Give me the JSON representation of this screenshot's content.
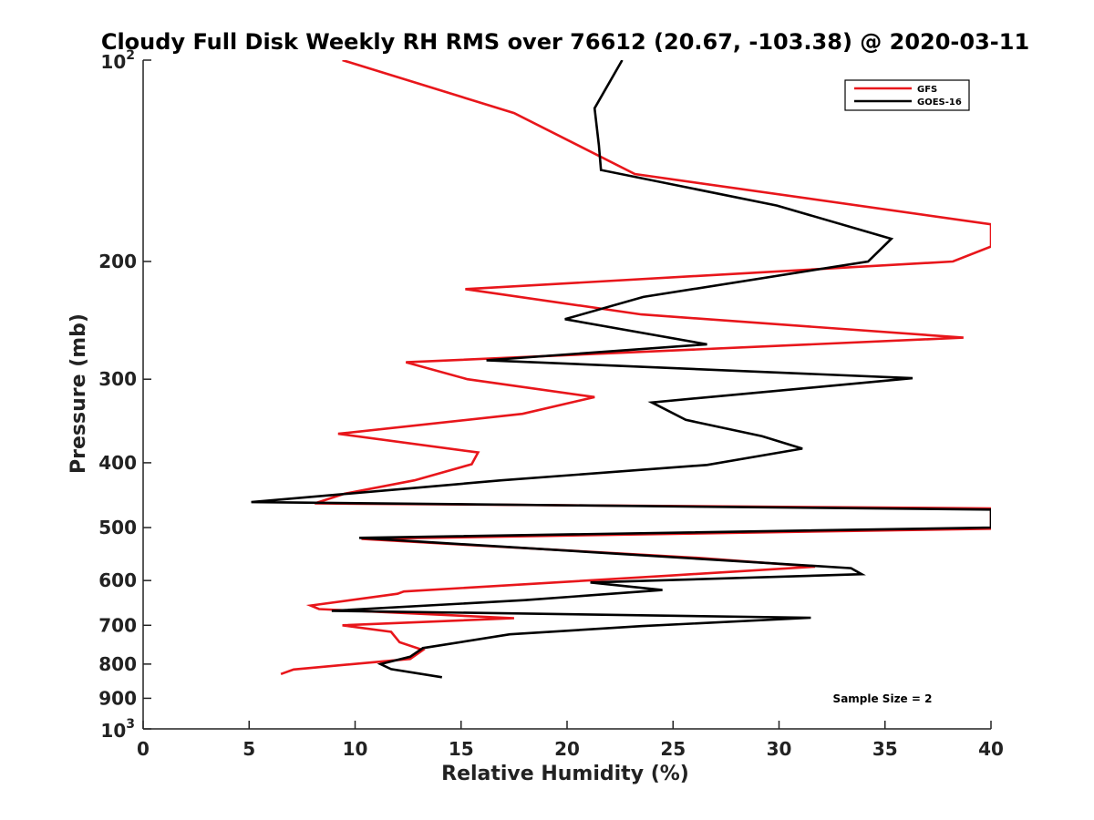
{
  "chart_data": {
    "type": "line",
    "title": "Cloudy Full Disk Weekly RH RMS over 76612 (20.67, -103.38) @ 2020-03-11",
    "xlabel": "Relative Humidity (%)",
    "ylabel": "Pressure (mb)",
    "xlim": [
      0,
      40
    ],
    "ylim": [
      100,
      1000
    ],
    "y_scale": "log",
    "y_reversed": true,
    "x_ticks": [
      0,
      5,
      10,
      15,
      20,
      25,
      30,
      35,
      40
    ],
    "x_tick_labels": [
      "0",
      "5",
      "10",
      "15",
      "20",
      "25",
      "30",
      "35",
      "40"
    ],
    "y_ticks": [
      200,
      300,
      400,
      500,
      600,
      700,
      800,
      900
    ],
    "y_tick_labels": [
      "200",
      "300",
      "400",
      "500",
      "600",
      "700",
      "800",
      "900"
    ],
    "y_end_ticks": [
      {
        "value": 100,
        "base": "10",
        "exp": "2"
      },
      {
        "value": 1000,
        "base": "10",
        "exp": "3"
      }
    ],
    "legend_position": "top-right",
    "annotation": "Sample Size = 2",
    "series": [
      {
        "name": "GFS",
        "color": "#e8161b",
        "rh": [
          9.4,
          17.5,
          23.2,
          40.0,
          40.0,
          38.2,
          15.2,
          23.5,
          38.7,
          12.4,
          15.3,
          21.3,
          17.9,
          9.2,
          15.8,
          15.5,
          12.8,
          9.5,
          8.1,
          40.0,
          40.0,
          10.3,
          26.2,
          31.7,
          24.8,
          12.3,
          12.0,
          7.9,
          8.3,
          17.5,
          9.4,
          11.7,
          12.1,
          13.2,
          12.6,
          7.1,
          6.5
        ],
        "pressure": [
          100,
          120,
          148,
          176,
          190,
          200,
          220,
          240,
          260,
          283,
          300,
          319,
          338,
          362,
          386,
          402,
          425,
          445,
          460,
          468,
          502,
          520,
          555,
          572,
          590,
          623,
          628,
          654,
          662,
          683,
          700,
          716,
          742,
          762,
          786,
          815,
          828
        ]
      },
      {
        "name": "GOES-16",
        "color": "#000000",
        "rh": [
          22.6,
          21.3,
          21.5,
          21.6,
          29.9,
          35.3,
          34.2,
          23.6,
          19.9,
          26.6,
          16.2,
          36.3,
          24.0,
          25.6,
          29.2,
          31.1,
          26.6,
          16.9,
          5.1,
          40.0,
          40.0,
          10.2,
          33.4,
          33.9,
          21.1,
          24.5,
          18.0,
          8.9,
          31.5,
          23.5,
          17.3,
          13.2,
          12.6,
          11.2,
          11.7,
          14.1
        ],
        "pressure": [
          100,
          118,
          134,
          146,
          165,
          185,
          200,
          226,
          244,
          266,
          281,
          299,
          325,
          345,
          365,
          381,
          403,
          425,
          458,
          470,
          500,
          518,
          575,
          587,
          604,
          620,
          642,
          666,
          682,
          702,
          722,
          757,
          780,
          800,
          814,
          837
        ]
      }
    ]
  }
}
